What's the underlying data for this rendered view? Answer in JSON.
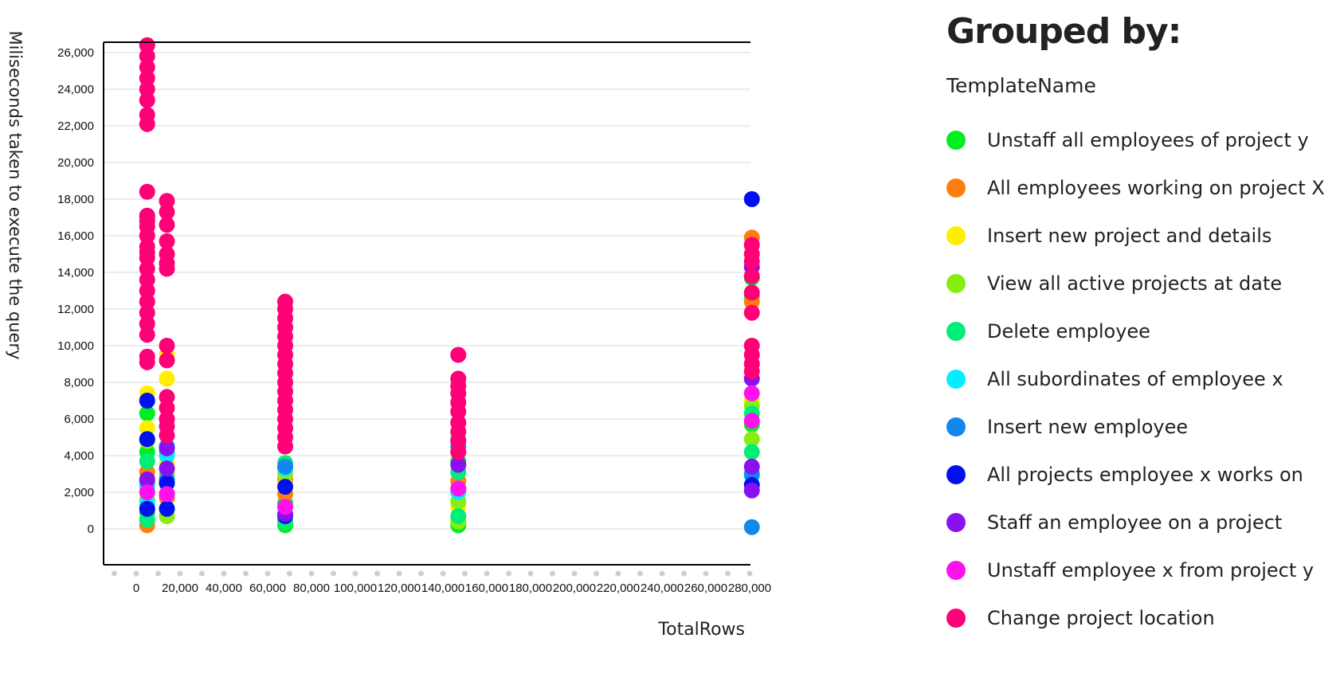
{
  "legend": {
    "heading": "Grouped by:",
    "group_field": "TemplateName"
  },
  "chart_data": {
    "type": "scatter",
    "xlabel": "TotalRows",
    "ylabel": "Miliseconds taken to execute the query",
    "xlim": [
      -10000,
      290000
    ],
    "ylim": [
      -2000,
      27000
    ],
    "x_ticks": [
      0,
      20000,
      40000,
      60000,
      80000,
      100000,
      120000,
      140000,
      160000,
      180000,
      200000,
      220000,
      240000,
      260000,
      280000
    ],
    "x_tick_labels": [
      "0",
      "20,000",
      "40,000",
      "60,000",
      "80,000",
      "100,000",
      "120,000",
      "140,000",
      "160,000",
      "180,000",
      "200,000",
      "220,000",
      "240,000",
      "260,000",
      "280,000"
    ],
    "y_ticks": [
      0,
      2000,
      4000,
      6000,
      8000,
      10000,
      12000,
      14000,
      16000,
      18000,
      20000,
      22000,
      24000,
      26000
    ],
    "y_tick_labels": [
      "0",
      "2,000",
      "4,000",
      "6,000",
      "8,000",
      "10,000",
      "12,000",
      "14,000",
      "16,000",
      "18,000",
      "20,000",
      "22,000",
      "24,000",
      "26,000"
    ],
    "grid": true,
    "legend_position": "right",
    "series": [
      {
        "name": "Unstaff all employees of project y",
        "color": "#00ee22",
        "x": [
          5000,
          5000,
          5000,
          14000,
          14000,
          68000,
          68000,
          147000,
          147000,
          281000,
          281000,
          281000
        ],
        "y": [
          6300,
          4200,
          900,
          2500,
          700,
          1400,
          200,
          3700,
          200,
          13700,
          12700,
          5700
        ]
      },
      {
        "name": "All employees working on project X",
        "color": "#ff7f0e",
        "x": [
          5000,
          5000,
          14000,
          68000,
          68000,
          147000,
          281000,
          281000
        ],
        "y": [
          200,
          3100,
          1700,
          1900,
          2700,
          2600,
          15900,
          12400
        ]
      },
      {
        "name": "Insert new project and details",
        "color": "#ffee00",
        "x": [
          5000,
          5000,
          14000,
          14000,
          14000,
          68000,
          147000,
          281000
        ],
        "y": [
          7400,
          5500,
          9500,
          8200,
          3600,
          2400,
          1200,
          7000
        ]
      },
      {
        "name": "View all active projects at date",
        "color": "#88ee11",
        "x": [
          5000,
          5000,
          14000,
          14000,
          68000,
          147000,
          147000,
          281000,
          281000
        ],
        "y": [
          4800,
          1600,
          3000,
          700,
          3000,
          1500,
          400,
          6700,
          4900
        ]
      },
      {
        "name": "Delete employee",
        "color": "#00ee77",
        "x": [
          5000,
          5000,
          14000,
          14000,
          68000,
          68000,
          147000,
          147000,
          281000,
          281000
        ],
        "y": [
          3700,
          500,
          4200,
          1100,
          3600,
          400,
          3100,
          700,
          4200,
          6300
        ]
      },
      {
        "name": "All subordinates of employee x",
        "color": "#00eeff",
        "x": [
          5000,
          5000,
          14000,
          68000,
          147000,
          147000,
          281000
        ],
        "y": [
          2300,
          1400,
          4000,
          3300,
          4900,
          2000,
          2900
        ]
      },
      {
        "name": "Insert new employee",
        "color": "#1188ee",
        "x": [
          5000,
          14000,
          14000,
          68000,
          147000,
          281000,
          281000
        ],
        "y": [
          2600,
          4500,
          2700,
          3400,
          4500,
          100,
          3000
        ]
      },
      {
        "name": "All projects employee x works on",
        "color": "#0011ee",
        "x": [
          5000,
          5000,
          5000,
          14000,
          14000,
          14000,
          68000,
          68000,
          281000,
          281000
        ],
        "y": [
          7000,
          4900,
          1100,
          1900,
          1100,
          2500,
          700,
          2300,
          18000,
          2400
        ]
      },
      {
        "name": "Staff an employee on a project",
        "color": "#8811ee",
        "x": [
          5000,
          14000,
          14000,
          68000,
          147000,
          281000,
          281000,
          281000,
          281000
        ],
        "y": [
          2700,
          4400,
          3300,
          800,
          3500,
          14300,
          8200,
          3400,
          2100
        ]
      },
      {
        "name": "Unstaff employee x from project y",
        "color": "#ff11ee",
        "x": [
          5000,
          14000,
          68000,
          147000,
          281000,
          281000
        ],
        "y": [
          2000,
          1900,
          1200,
          2200,
          5900,
          7400
        ]
      },
      {
        "name": "Change project location",
        "color": "#ff0077",
        "x": [
          5000,
          5000,
          5000,
          5000,
          5000,
          5000,
          5000,
          5000,
          5000,
          5000,
          5000,
          5000,
          5000,
          5000,
          5000,
          5000,
          5000,
          5000,
          5000,
          5000,
          5000,
          5000,
          5000,
          5000,
          5000,
          5000,
          14000,
          14000,
          14000,
          14000,
          14000,
          14000,
          14000,
          14000,
          14000,
          14000,
          14000,
          14000,
          14000,
          14000,
          68000,
          68000,
          68000,
          68000,
          68000,
          68000,
          68000,
          68000,
          68000,
          68000,
          68000,
          68000,
          68000,
          68000,
          68000,
          68000,
          68000,
          147000,
          147000,
          147000,
          147000,
          147000,
          147000,
          147000,
          147000,
          147000,
          147000,
          281000,
          281000,
          281000,
          281000,
          281000,
          281000,
          281000,
          281000,
          281000,
          281000
        ],
        "y": [
          26400,
          25800,
          25200,
          24600,
          24000,
          23400,
          22600,
          22100,
          18400,
          17000,
          16500,
          16000,
          15400,
          14800,
          14200,
          13600,
          13000,
          12400,
          11800,
          11200,
          10600,
          9400,
          9100,
          15100,
          16800,
          17100,
          17900,
          17300,
          16600,
          15700,
          15000,
          14500,
          14200,
          10000,
          9200,
          7200,
          6600,
          6000,
          5600,
          5100,
          12400,
          12000,
          11500,
          11000,
          10500,
          10000,
          9500,
          9000,
          8500,
          8000,
          7500,
          7000,
          6500,
          6000,
          5500,
          5000,
          4500,
          9500,
          8200,
          7800,
          7400,
          6900,
          6400,
          5800,
          5300,
          4800,
          4200,
          15500,
          15000,
          14600,
          13800,
          12900,
          11800,
          10000,
          9500,
          9000,
          8600
        ]
      }
    ]
  }
}
